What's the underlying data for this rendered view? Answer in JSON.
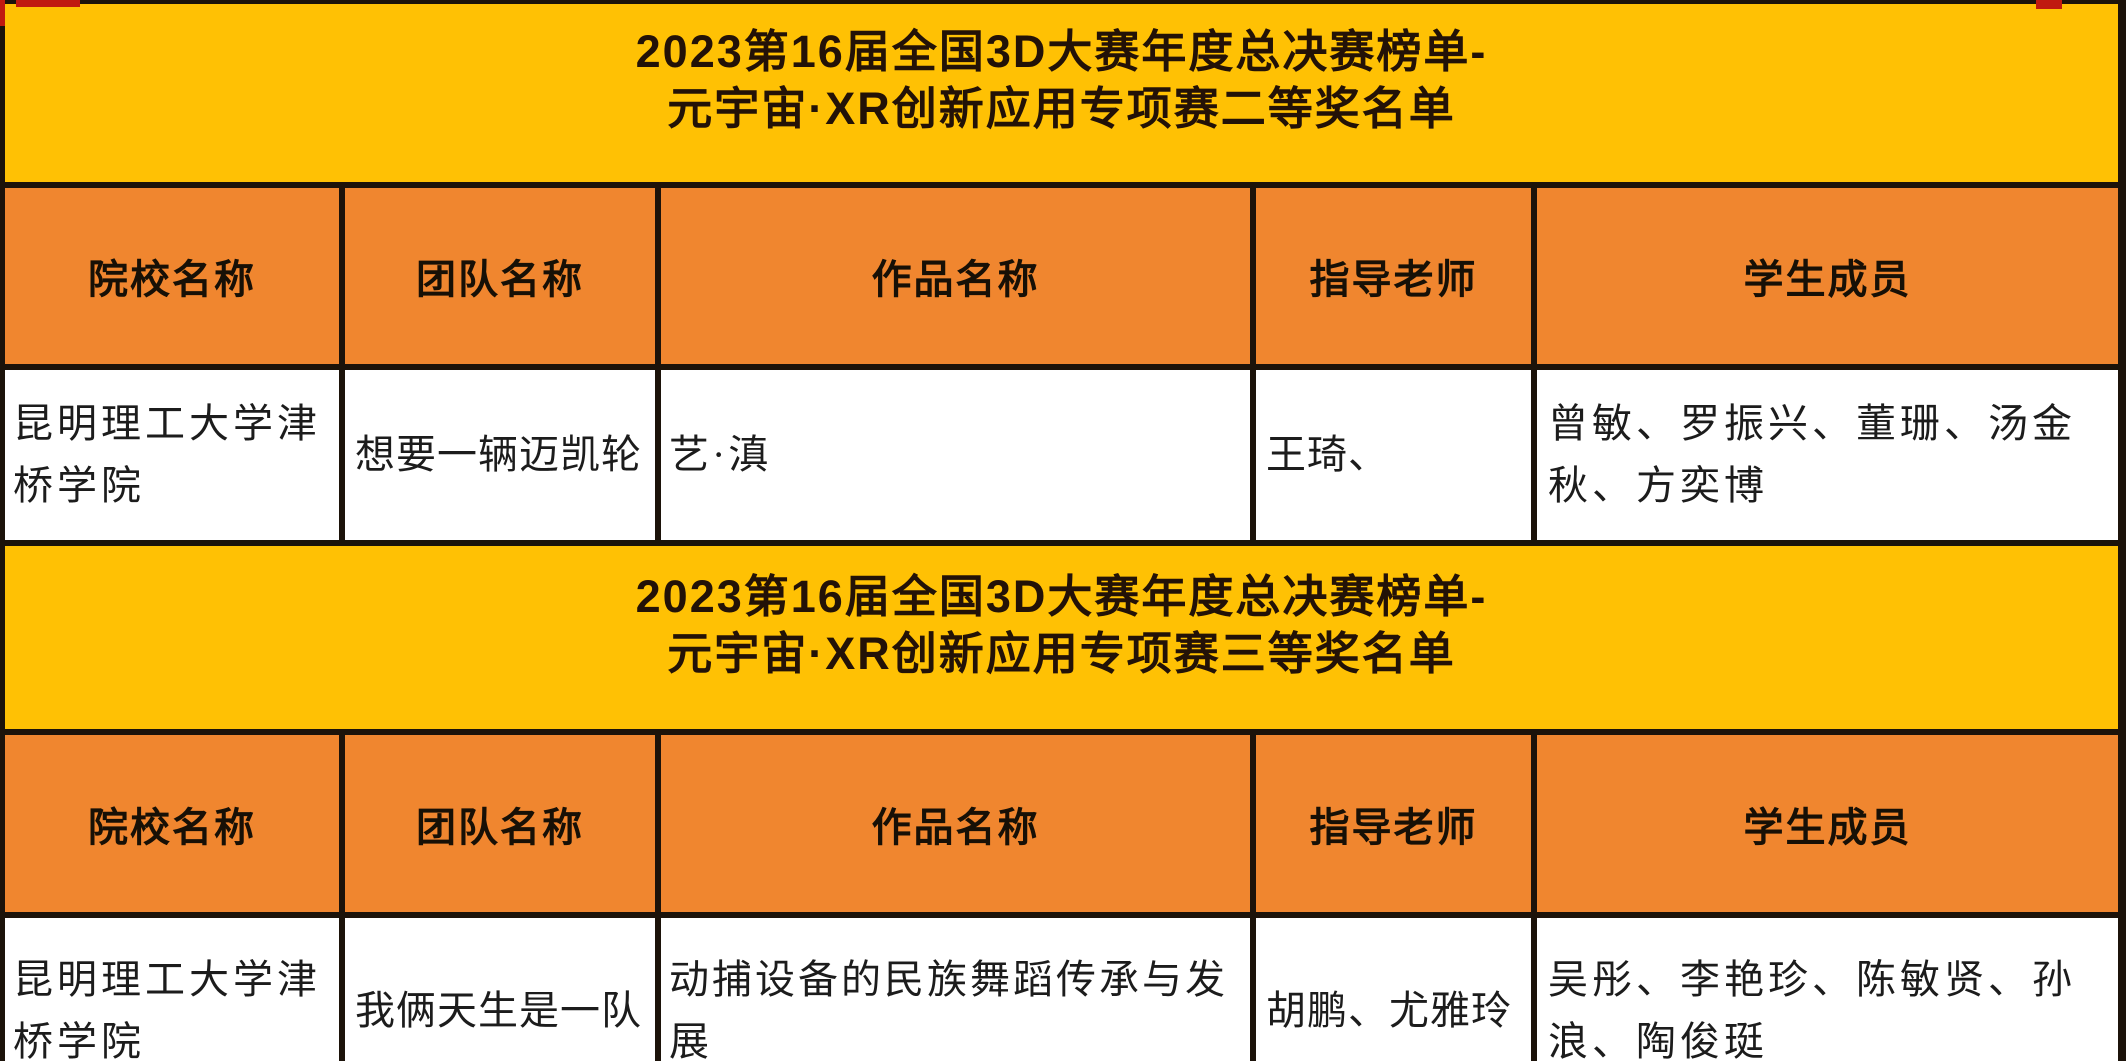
{
  "colors": {
    "banner_bg": "#ffc104",
    "header_bg": "#f0862f",
    "border": "#1c130a",
    "accent_red": "#c01a10",
    "row_bg": "#ffffff"
  },
  "columns": [
    "院校名称",
    "团队名称",
    "作品名称",
    "指导老师",
    "学生成员"
  ],
  "sections": [
    {
      "title_line1": "2023第16届全国3D大赛年度总决赛榜单-",
      "title_line2": "元宇宙·XR创新应用专项赛二等奖名单",
      "rows": [
        {
          "school": "昆明理工大学津桥学院",
          "team": "想要一辆迈凯轮",
          "work": "艺·滇",
          "teacher": "王琦、",
          "students": "曾敏、罗振兴、董珊、汤金秋、方奕博"
        }
      ]
    },
    {
      "title_line1": "2023第16届全国3D大赛年度总决赛榜单-",
      "title_line2": "元宇宙·XR创新应用专项赛三等奖名单",
      "rows": [
        {
          "school": "昆明理工大学津桥学院",
          "team": "我俩天生是一队",
          "work": "动捕设备的民族舞蹈传承与发展",
          "teacher": "胡鹏、尤雅玲",
          "students": "吴彤、李艳珍、陈敏贤、孙浪、陶俊珽"
        }
      ]
    }
  ]
}
